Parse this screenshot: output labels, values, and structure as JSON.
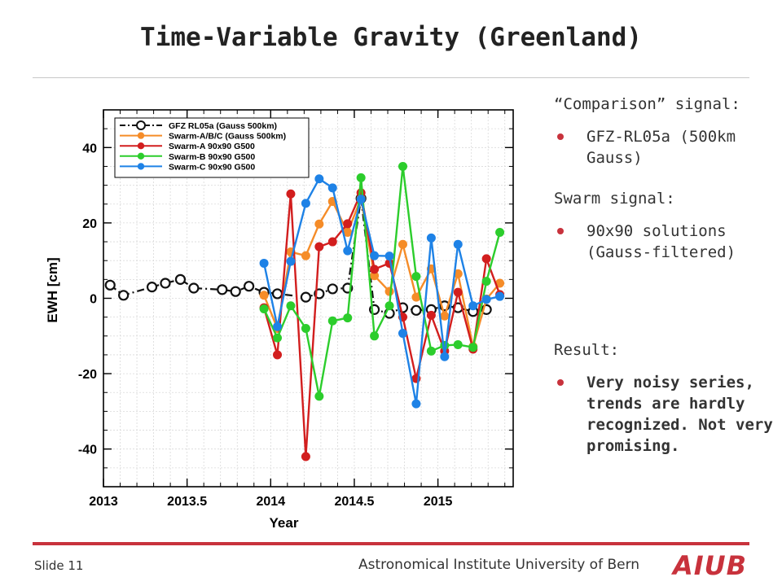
{
  "slide": {
    "title": "Time-Variable Gravity (Greenland)",
    "number_label": "Slide 11",
    "institute": "Astronomical Institute University of Bern",
    "logo_text": "AIUB"
  },
  "panel": {
    "comparison_heading": "“Comparison” signal:",
    "comparison_bullets": [
      "GFZ-RL05a (500km Gauss)"
    ],
    "swarm_heading": "Swarm signal:",
    "swarm_bullets": [
      "90x90 solutions (Gauss-filtered)"
    ],
    "result_heading": "Result:",
    "result_bullets": [
      "Very noisy series, trends are hardly recognized. Not very promising."
    ],
    "accent_color": "#c8323c"
  },
  "chart_data": {
    "type": "line",
    "xlabel": "Year",
    "ylabel": "EWH [cm]",
    "xlim": [
      2013,
      2015.45
    ],
    "ylim": [
      -50,
      50
    ],
    "xticks": [
      2013,
      2013.5,
      2014,
      2014.5,
      2015
    ],
    "xtick_labels": [
      "2013",
      "2013.5",
      "2014",
      "2014.5",
      "2015"
    ],
    "yticks": [
      -40,
      -20,
      0,
      20,
      40
    ],
    "ytick_labels": [
      "-40",
      "-20",
      "0",
      "20",
      "40"
    ],
    "grid": true,
    "legend_position": "top-left",
    "series": [
      {
        "name": "GFZ RL05a (Gauss 500km)",
        "color": "#111111",
        "style": "dash-dot-open-circle",
        "x": [
          2013.04,
          2013.12,
          2013.29,
          2013.37,
          2013.46,
          2013.54,
          2013.71,
          2013.79,
          2013.87,
          2013.96,
          2014.04,
          2014.21,
          2014.29,
          2014.37,
          2014.46,
          2014.54,
          2014.62,
          2014.71,
          2014.79,
          2014.87,
          2014.96,
          2015.04,
          2015.12,
          2015.21,
          2015.29
        ],
        "y": [
          3.5,
          0.8,
          3.0,
          4.0,
          5.0,
          2.7,
          2.3,
          1.8,
          3.2,
          1.6,
          1.2,
          0.3,
          1.2,
          2.5,
          2.7,
          26.5,
          -3.0,
          -4.0,
          -2.5,
          -3.2,
          -3.0,
          -2.0,
          -2.5,
          -3.5,
          -3.0
        ]
      },
      {
        "name": "Swarm-A/B/C (Gauss 500km)",
        "color": "#f58c28",
        "x": [
          2013.96,
          2014.04,
          2014.12,
          2014.21,
          2014.29,
          2014.37,
          2014.46,
          2014.54,
          2014.62,
          2014.71,
          2014.79,
          2014.87,
          2014.96,
          2015.04,
          2015.12,
          2015.21,
          2015.29,
          2015.37
        ],
        "y": [
          0.8,
          -8.0,
          12.3,
          11.3,
          19.7,
          25.7,
          17.5,
          26.5,
          6.0,
          1.8,
          14.3,
          0.3,
          7.8,
          -4.7,
          6.5,
          -12.8,
          -0.2,
          4.0
        ]
      },
      {
        "name": "Swarm-A 90x90 G500",
        "color": "#d21e1e",
        "x": [
          2013.96,
          2014.04,
          2014.12,
          2014.21,
          2014.29,
          2014.37,
          2014.46,
          2014.54,
          2014.62,
          2014.71,
          2014.79,
          2014.87,
          2014.96,
          2015.04,
          2015.12,
          2015.21,
          2015.29,
          2015.37
        ],
        "y": [
          -2.5,
          -15.0,
          27.7,
          -42.0,
          13.7,
          15.0,
          19.8,
          28.0,
          7.7,
          9.3,
          -5.0,
          -21.3,
          -4.5,
          -14.0,
          1.6,
          -13.5,
          10.5,
          1.0
        ]
      },
      {
        "name": "Swarm-B 90x90 G500",
        "color": "#2ccd2c",
        "x": [
          2013.96,
          2014.04,
          2014.12,
          2014.21,
          2014.29,
          2014.37,
          2014.46,
          2014.54,
          2014.62,
          2014.71,
          2014.79,
          2014.87,
          2014.96,
          2015.04,
          2015.12,
          2015.21,
          2015.29,
          2015.37
        ],
        "y": [
          -2.8,
          -10.5,
          -2.0,
          -8.0,
          -26.0,
          -6.0,
          -5.2,
          32.0,
          -10.0,
          -2.0,
          35.0,
          5.8,
          -14.0,
          -12.5,
          -12.3,
          -13.0,
          4.5,
          17.5
        ]
      },
      {
        "name": "Swarm-C 90x90 G500",
        "color": "#1e82e6",
        "x": [
          2013.96,
          2014.04,
          2014.12,
          2014.21,
          2014.29,
          2014.37,
          2014.46,
          2014.54,
          2014.62,
          2014.71,
          2014.79,
          2014.87,
          2014.96,
          2015.04,
          2015.12,
          2015.21,
          2015.29,
          2015.37
        ],
        "y": [
          9.3,
          -7.5,
          9.8,
          25.2,
          31.7,
          29.3,
          12.6,
          26.3,
          11.3,
          11.2,
          -9.3,
          -28.0,
          16.0,
          -15.5,
          14.3,
          -2.0,
          -0.3,
          0.5
        ]
      }
    ]
  }
}
